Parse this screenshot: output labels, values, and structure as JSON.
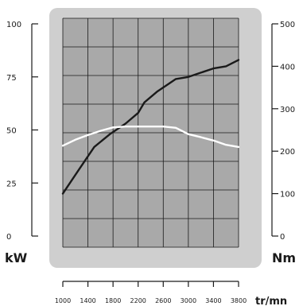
{
  "chart_data": {
    "type": "line",
    "xlabel": "tr/mn",
    "ylabel_left": "kW",
    "ylabel_right": "Nm",
    "x_ticks": [
      1000,
      1400,
      1800,
      2200,
      2600,
      3000,
      3400,
      3800
    ],
    "xlim": [
      1000,
      3800
    ],
    "y_left_ticks": [
      0,
      25,
      50,
      75,
      100
    ],
    "y_left_lim": [
      0,
      100
    ],
    "y_right_ticks": [
      0,
      100,
      200,
      300,
      400,
      500
    ],
    "y_right_lim": [
      0,
      500
    ],
    "grid": true,
    "colors": {
      "panel_outer": "#cfcfcf",
      "plot_bg": "#a9a9a9",
      "grid": "#1a1a1a",
      "power_line": "#1a1a1a",
      "torque_line": "#ffffff"
    },
    "series": [
      {
        "axis": "left",
        "x": [
          1000,
          1250,
          1500,
          1750,
          2000,
          2200,
          2300,
          2500,
          2700,
          2800,
          3000,
          3200,
          3400,
          3600,
          3800
        ],
        "values": [
          20,
          31,
          42,
          48,
          53,
          58,
          63,
          68,
          72,
          74,
          75,
          77,
          79,
          80,
          83
        ]
      },
      {
        "axis": "right",
        "x": [
          1000,
          1200,
          1400,
          1600,
          1800,
          2000,
          2200,
          2400,
          2600,
          2800,
          3000,
          3200,
          3400,
          3600,
          3800
        ],
        "values": [
          213,
          227,
          238,
          248,
          256,
          258,
          258,
          258,
          258,
          255,
          240,
          233,
          225,
          215,
          210
        ]
      }
    ]
  }
}
